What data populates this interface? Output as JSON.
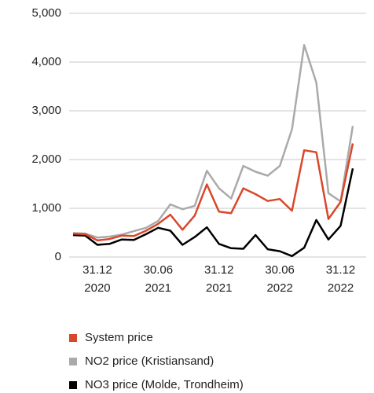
{
  "chart_data": {
    "type": "line",
    "categories": [
      null,
      null,
      "31.12 2020",
      null,
      null,
      null,
      null,
      "30.06 2021",
      null,
      null,
      null,
      null,
      "31.12 2021",
      null,
      null,
      null,
      null,
      "30.06 2022",
      null,
      null,
      null,
      null,
      "31.12 2022",
      null
    ],
    "series": [
      {
        "name": "System price",
        "color": "#d9472b",
        "values": [
          480,
          470,
          340,
          370,
          440,
          430,
          540,
          680,
          870,
          560,
          850,
          1490,
          930,
          900,
          1410,
          1290,
          1150,
          1190,
          950,
          2190,
          2150,
          780,
          1130,
          2330
        ]
      },
      {
        "name": "NO2 price (Kristiansand)",
        "color": "#aaaaaa",
        "values": [
          490,
          480,
          400,
          420,
          460,
          530,
          600,
          740,
          1080,
          980,
          1050,
          1770,
          1410,
          1200,
          1870,
          1750,
          1670,
          1870,
          2620,
          4350,
          3580,
          1310,
          1140,
          2690
        ]
      },
      {
        "name": "NO3 price (Molde, Trondheim)",
        "color": "#000000",
        "values": [
          450,
          440,
          250,
          270,
          360,
          350,
          470,
          600,
          540,
          250,
          410,
          610,
          270,
          180,
          170,
          450,
          160,
          120,
          20,
          190,
          760,
          360,
          640,
          1820
        ]
      }
    ],
    "ylim": [
      0,
      5000
    ],
    "yticks": [
      0,
      {
        "value": 1000,
        "label": "1,000"
      },
      {
        "value": 2000,
        "label": "2,000"
      },
      {
        "value": 3000,
        "label": "3,000"
      },
      {
        "value": 4000,
        "label": "4,000"
      },
      {
        "value": 5000,
        "label": "5,000"
      }
    ],
    "grid": true
  }
}
